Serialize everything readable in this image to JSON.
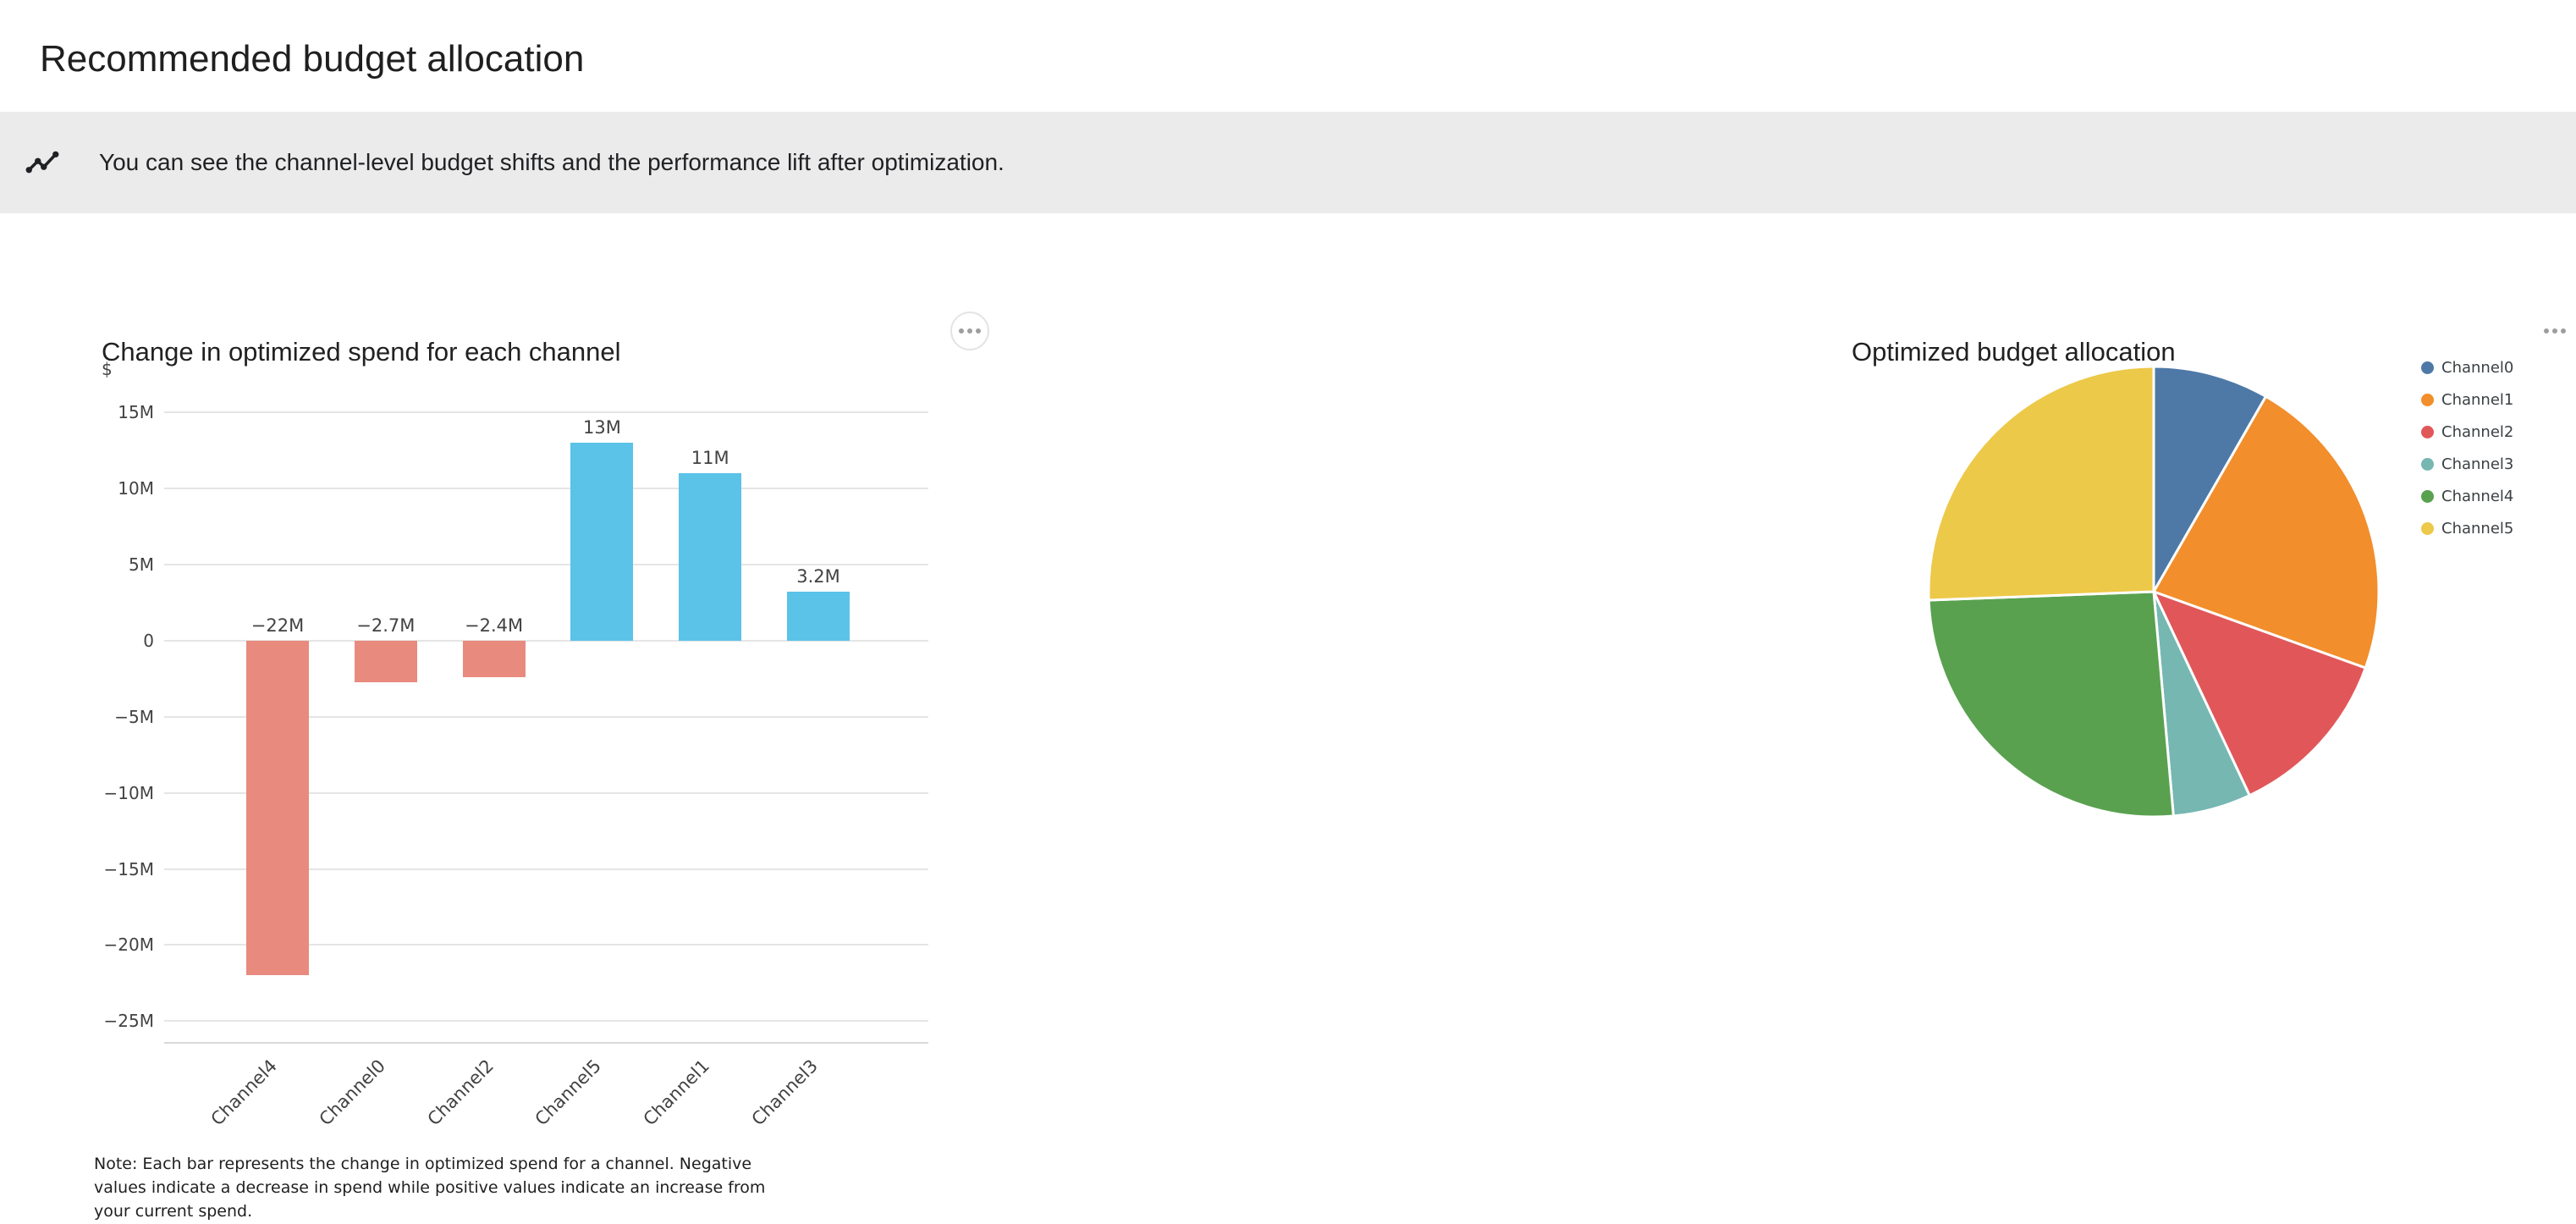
{
  "page": {
    "title": "Recommended budget allocation"
  },
  "banner": {
    "icon": "insights-icon",
    "text": "You can see the channel-level budget shifts and the performance lift after optimization."
  },
  "colors": {
    "banner_bg": "#ebebeb",
    "grid_line": "#e5e5e5",
    "axis_line": "#d9d9d9",
    "tick_text": "#424242"
  },
  "chart_data": [
    {
      "type": "bar",
      "title": "Change in optimized spend for each channel",
      "unit_label": "$",
      "categories": [
        "Channel4",
        "Channel0",
        "Channel2",
        "Channel5",
        "Channel1",
        "Channel3"
      ],
      "values": [
        -22,
        -2.7,
        -2.4,
        13,
        11,
        3.2
      ],
      "value_labels": [
        "−22M",
        "−2.7M",
        "−2.4M",
        "13M",
        "11M",
        "3.2M"
      ],
      "positive_color": "#5bc2e8",
      "negative_color": "#e98a7f",
      "y_ticks": [
        15,
        10,
        5,
        0,
        -5,
        -10,
        -15,
        -20,
        -25
      ],
      "y_tick_labels": [
        "15M",
        "10M",
        "5M",
        "0",
        "−5M",
        "−10M",
        "−15M",
        "−20M",
        "−25M"
      ],
      "ylim": [
        -26.5,
        16
      ],
      "grid": true,
      "legend": false,
      "note": "Note: Each bar represents the change in optimized spend for a channel. Negative values indicate a decrease in spend while positive values indicate an increase from your current spend."
    },
    {
      "type": "pie",
      "title": "Optimized budget allocation",
      "labels": [
        "Channel0",
        "Channel1",
        "Channel2",
        "Channel3",
        "Channel4",
        "Channel5"
      ],
      "values_percent": [
        8.3,
        22.2,
        12.5,
        5.6,
        25.8,
        25.6
      ],
      "colors": [
        "#4e79a7",
        "#f28e2b",
        "#e15759",
        "#76b7b2",
        "#59a14f",
        "#edc949"
      ],
      "legend_position": "right"
    }
  ]
}
